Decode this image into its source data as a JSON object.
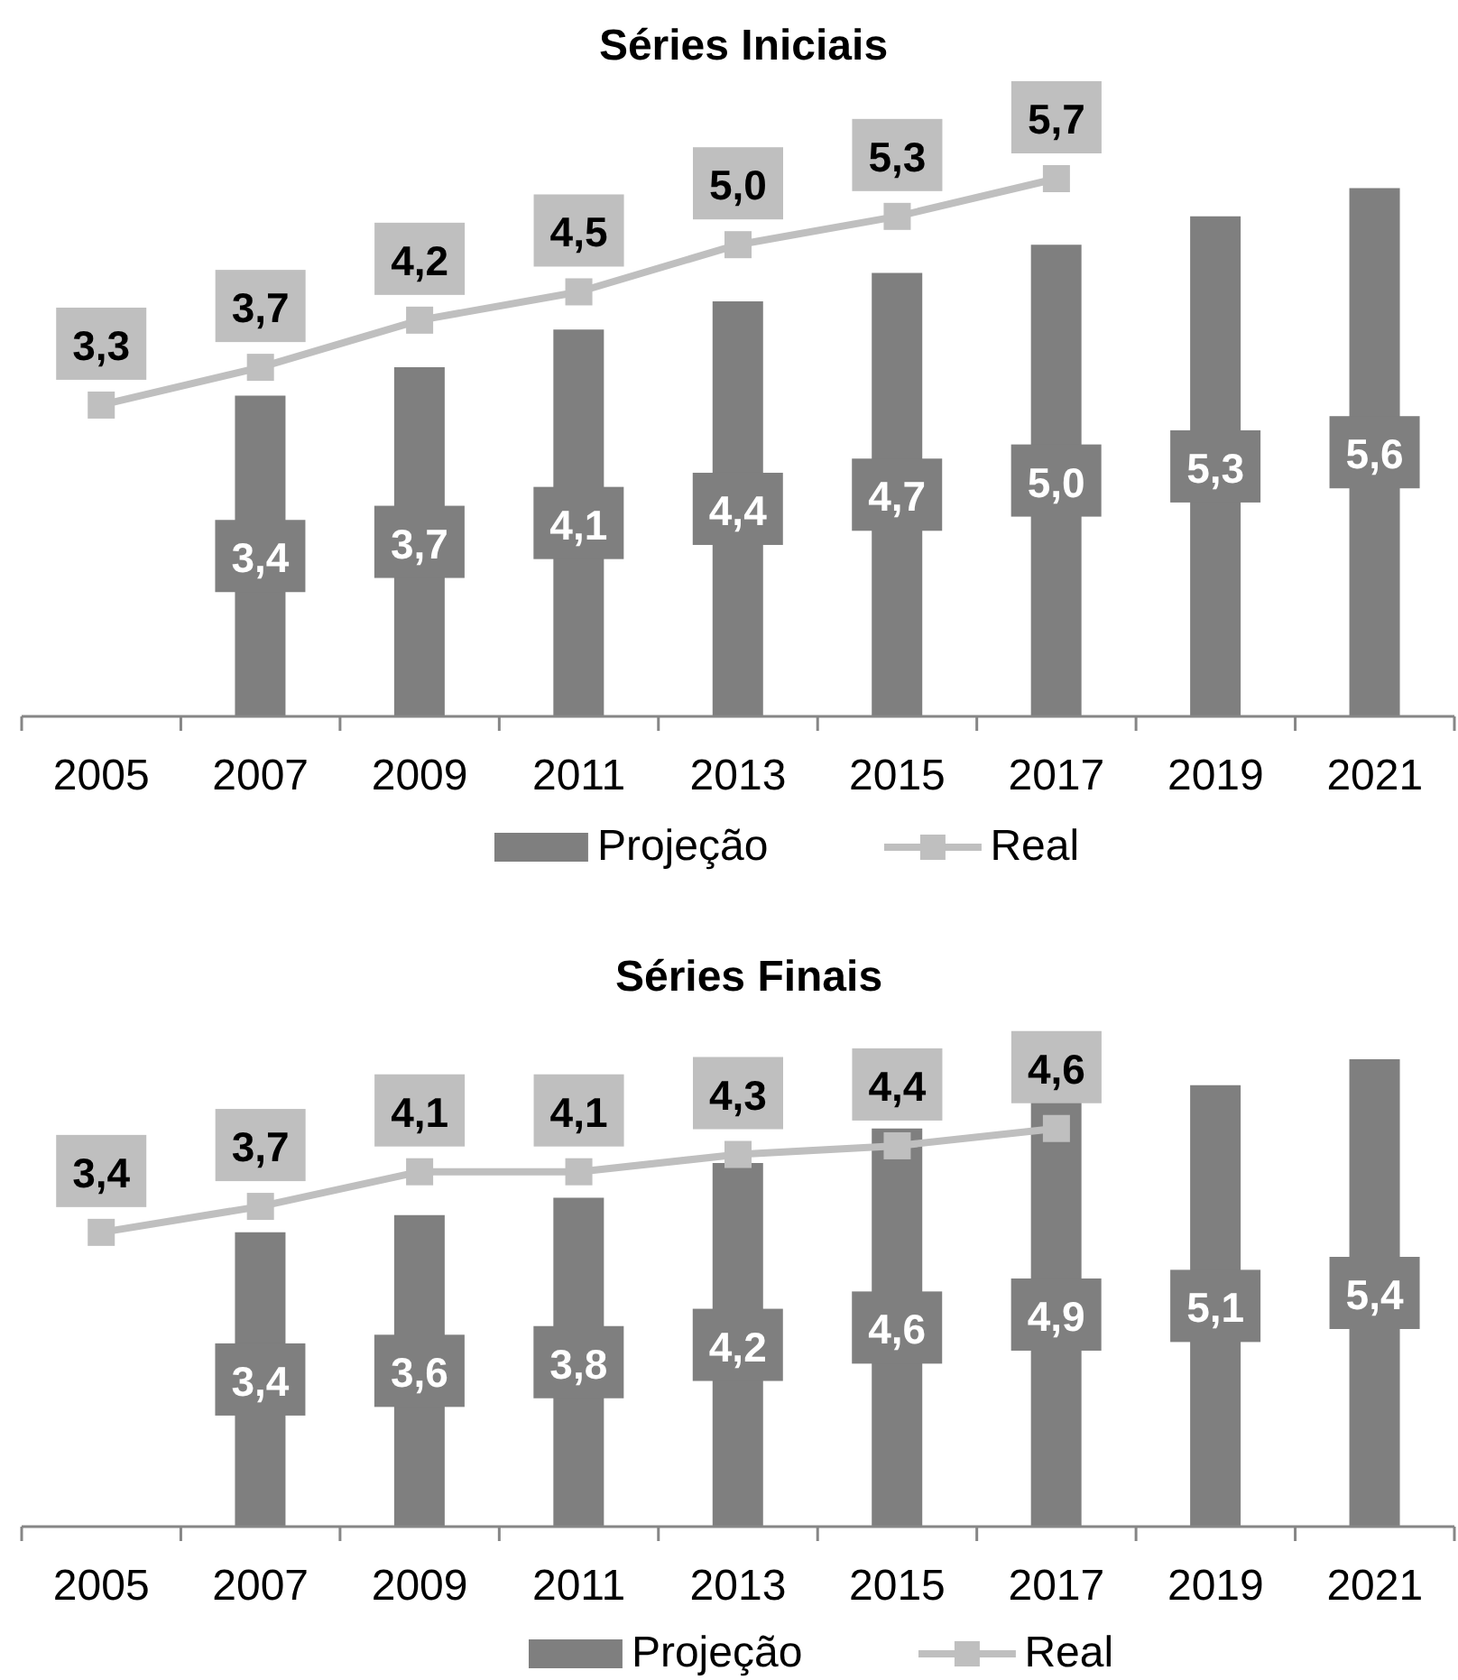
{
  "chart_data": [
    {
      "type": "bar",
      "title": "Séries Iniciais",
      "categories": [
        "2005",
        "2007",
        "2009",
        "2011",
        "2013",
        "2015",
        "2017",
        "2019",
        "2021"
      ],
      "series": [
        {
          "name": "Projeção",
          "color": "#7f7f7f",
          "values": [
            null,
            3.4,
            3.7,
            4.1,
            4.4,
            4.7,
            5.0,
            5.3,
            5.6
          ],
          "value_labels": [
            null,
            "3,4",
            "3,7",
            "4,1",
            "4,4",
            "4,7",
            "5,0",
            "5,3",
            "5,6"
          ]
        },
        {
          "name": "Real",
          "type": "line",
          "color": "#bfbfbf",
          "values": [
            3.3,
            3.7,
            4.2,
            4.5,
            5.0,
            5.3,
            5.7,
            null,
            null
          ],
          "value_labels": [
            "3,3",
            "3,7",
            "4,2",
            "4,5",
            "5,0",
            "5,3",
            "5,7",
            null,
            null
          ]
        }
      ],
      "marker": "square",
      "legend": "bottom",
      "tick_labels": "x"
    },
    {
      "type": "bar",
      "title": "Séries Finais",
      "categories": [
        "2005",
        "2007",
        "2009",
        "2011",
        "2013",
        "2015",
        "2017",
        "2019",
        "2021"
      ],
      "series": [
        {
          "name": "Projeção",
          "color": "#7f7f7f",
          "values": [
            null,
            3.4,
            3.6,
            3.8,
            4.2,
            4.6,
            4.9,
            5.1,
            5.4
          ],
          "value_labels": [
            null,
            "3,4",
            "3,6",
            "3,8",
            "4,2",
            "4,6",
            "4,9",
            "5,1",
            "5,4"
          ]
        },
        {
          "name": "Real",
          "type": "line",
          "color": "#bfbfbf",
          "values": [
            3.4,
            3.7,
            4.1,
            4.1,
            4.3,
            4.4,
            4.6,
            null,
            null
          ],
          "value_labels": [
            "3,4",
            "3,7",
            "4,1",
            "4,1",
            "4,3",
            "4,4",
            "4,6",
            null,
            null
          ]
        }
      ],
      "marker": "square",
      "legend": "bottom",
      "tick_labels": "x"
    }
  ]
}
